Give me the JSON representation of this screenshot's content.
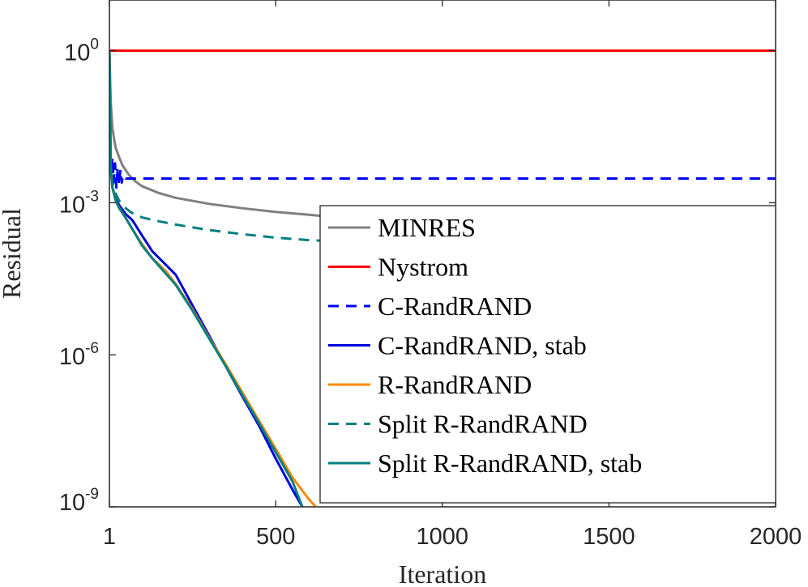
{
  "chart_data": {
    "type": "line",
    "xlabel": "Iteration",
    "ylabel": "Residual",
    "xlim": [
      1,
      2000
    ],
    "ylim": [
      1e-09,
      10
    ],
    "yscale": "log",
    "xticks": [
      1,
      500,
      1000,
      1500,
      2000
    ],
    "yticks": [
      {
        "value": 1,
        "base": "10",
        "exp": "0"
      },
      {
        "value": 0.001,
        "base": "10",
        "exp": "-3"
      },
      {
        "value": 1e-06,
        "base": "10",
        "exp": "-6"
      },
      {
        "value": 1e-09,
        "base": "10",
        "exp": "-9"
      }
    ],
    "grid": false,
    "legend_position": "right",
    "series": [
      {
        "name": "MINRES",
        "color": "#808080",
        "dash": "solid",
        "x": [
          1,
          5,
          10,
          15,
          20,
          30,
          40,
          60,
          80,
          100,
          150,
          200,
          300,
          400,
          500,
          600,
          700,
          800,
          1000,
          1200,
          1400,
          1600,
          1800,
          2000
        ],
        "y": [
          1.0,
          0.1,
          0.03,
          0.018,
          0.012,
          0.008,
          0.0055,
          0.0035,
          0.0026,
          0.0021,
          0.00155,
          0.00125,
          0.00095,
          0.00078,
          0.00066,
          0.00058,
          0.0005,
          0.00044,
          0.00034,
          0.00026,
          0.0002,
          0.00015,
          0.00011,
          8e-05
        ]
      },
      {
        "name": "Nystrom",
        "color": "#ff0000",
        "dash": "solid",
        "x": [
          1,
          2000
        ],
        "y": [
          1.0,
          1.0
        ]
      },
      {
        "name": "C-RandRAND",
        "color": "#0000ff",
        "dash": "dashed",
        "x": [
          1,
          3,
          6,
          10,
          14,
          18,
          22,
          26,
          30,
          34,
          38,
          42,
          50,
          60,
          80,
          2000
        ],
        "y": [
          1.0,
          0.01,
          0.004,
          0.008,
          0.0025,
          0.006,
          0.002,
          0.005,
          0.0022,
          0.0045,
          0.0025,
          0.0035,
          0.003,
          0.003,
          0.003,
          0.003
        ]
      },
      {
        "name": "C-RandRAND, stab",
        "color": "#0000dd",
        "dash": "solid",
        "x": [
          1,
          5,
          10,
          20,
          30,
          50,
          70,
          100,
          130,
          170,
          200,
          250,
          300,
          350,
          400,
          450,
          500,
          550,
          580
        ],
        "y": [
          1.0,
          0.005,
          0.002,
          0.0012,
          0.0009,
          0.0006,
          0.00045,
          0.00022,
          0.00011,
          6e-05,
          3.8e-05,
          9.5e-06,
          2.4e-06,
          6e-07,
          1.5e-07,
          4e-08,
          9e-09,
          2.2e-09,
          1e-09
        ]
      },
      {
        "name": "R-RandRAND",
        "color": "#ff8800",
        "dash": "solid",
        "x": [
          1,
          5,
          10,
          20,
          30,
          50,
          70,
          100,
          130,
          170,
          200,
          250,
          300,
          350,
          400,
          450,
          500,
          550,
          600,
          620
        ],
        "y": [
          1.0,
          0.005,
          0.002,
          0.0011,
          0.0008,
          0.0005,
          0.0003,
          0.00015,
          8e-05,
          4.5e-05,
          2.5e-05,
          8e-06,
          2.2e-06,
          6.5e-07,
          1.8e-07,
          5e-08,
          1.4e-08,
          3.8e-09,
          1.4e-09,
          1e-09
        ]
      },
      {
        "name": "Split R-RandRAND",
        "color": "#008080",
        "dash": "dashed",
        "x": [
          1,
          5,
          10,
          20,
          30,
          50,
          70,
          100,
          150,
          200,
          300,
          400,
          500,
          600,
          700,
          800,
          1000,
          1200,
          1400,
          1600,
          1800,
          2000
        ],
        "y": [
          1.0,
          0.005,
          0.0025,
          0.0015,
          0.0011,
          0.00078,
          0.00062,
          0.00051,
          0.00043,
          0.00037,
          0.00029,
          0.00024,
          0.000205,
          0.000183,
          0.00017,
          0.000158,
          0.000145,
          0.000135,
          0.000126,
          0.000118,
          0.00011,
          0.000104
        ]
      },
      {
        "name": "Split R-RandRAND, stab",
        "color": "#008080",
        "dash": "solid",
        "x": [
          1,
          5,
          10,
          20,
          30,
          50,
          70,
          100,
          130,
          170,
          200,
          250,
          300,
          350,
          400,
          450,
          500,
          550,
          580
        ],
        "y": [
          1.0,
          0.005,
          0.002,
          0.0011,
          0.0008,
          0.0005,
          0.0003,
          0.00014,
          8e-05,
          4e-05,
          2.4e-05,
          7.5e-06,
          2.1e-06,
          6e-07,
          1.6e-07,
          4.5e-08,
          1.2e-08,
          3.2e-09,
          1e-09
        ]
      }
    ]
  }
}
